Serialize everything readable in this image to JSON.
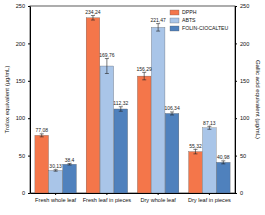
{
  "chart_data": {
    "type": "bar",
    "y_label": "Trolox equivalent (µg/mL)",
    "y2_label": "Gallic acid equivalent (µg/mL)",
    "categories": [
      "Fresh whole leaf",
      "Fresh leaf in pieces",
      "Dry whole leaf",
      "Dry leaf in pieces"
    ],
    "series": [
      {
        "name": "DPPH",
        "color": "#f4764a",
        "values": [
          77.08,
          234.24,
          156.29,
          55.32
        ],
        "value_labels": [
          "77,08",
          "234,24",
          "156,29",
          "55,32"
        ],
        "errors": [
          2,
          3,
          5,
          3
        ]
      },
      {
        "name": "ABTS",
        "color": "#a9c5e8",
        "values": [
          30.13,
          169.76,
          221.47,
          87.13
        ],
        "value_labels": [
          "30,13",
          "169,76",
          "221,47",
          "87,13"
        ],
        "errors": [
          1,
          10,
          5,
          2
        ]
      },
      {
        "name": "FOLIN-CIOCALTEU",
        "color": "#4f81bd",
        "axis": "y2",
        "values": [
          38.4,
          112.32,
          106.34,
          40.98
        ],
        "value_labels": [
          "38,4",
          "112,32",
          "106,34",
          "40,98"
        ],
        "errors": [
          1,
          3,
          2,
          2
        ]
      }
    ],
    "ylim": [
      0,
      250
    ],
    "yticks": [
      0,
      50,
      100,
      150,
      200,
      250
    ],
    "y2lim": [
      0,
      250
    ],
    "y2ticks": [
      0,
      50,
      100,
      150,
      200,
      250
    ],
    "data_labels": true,
    "legend": "upper right",
    "grid": false
  }
}
